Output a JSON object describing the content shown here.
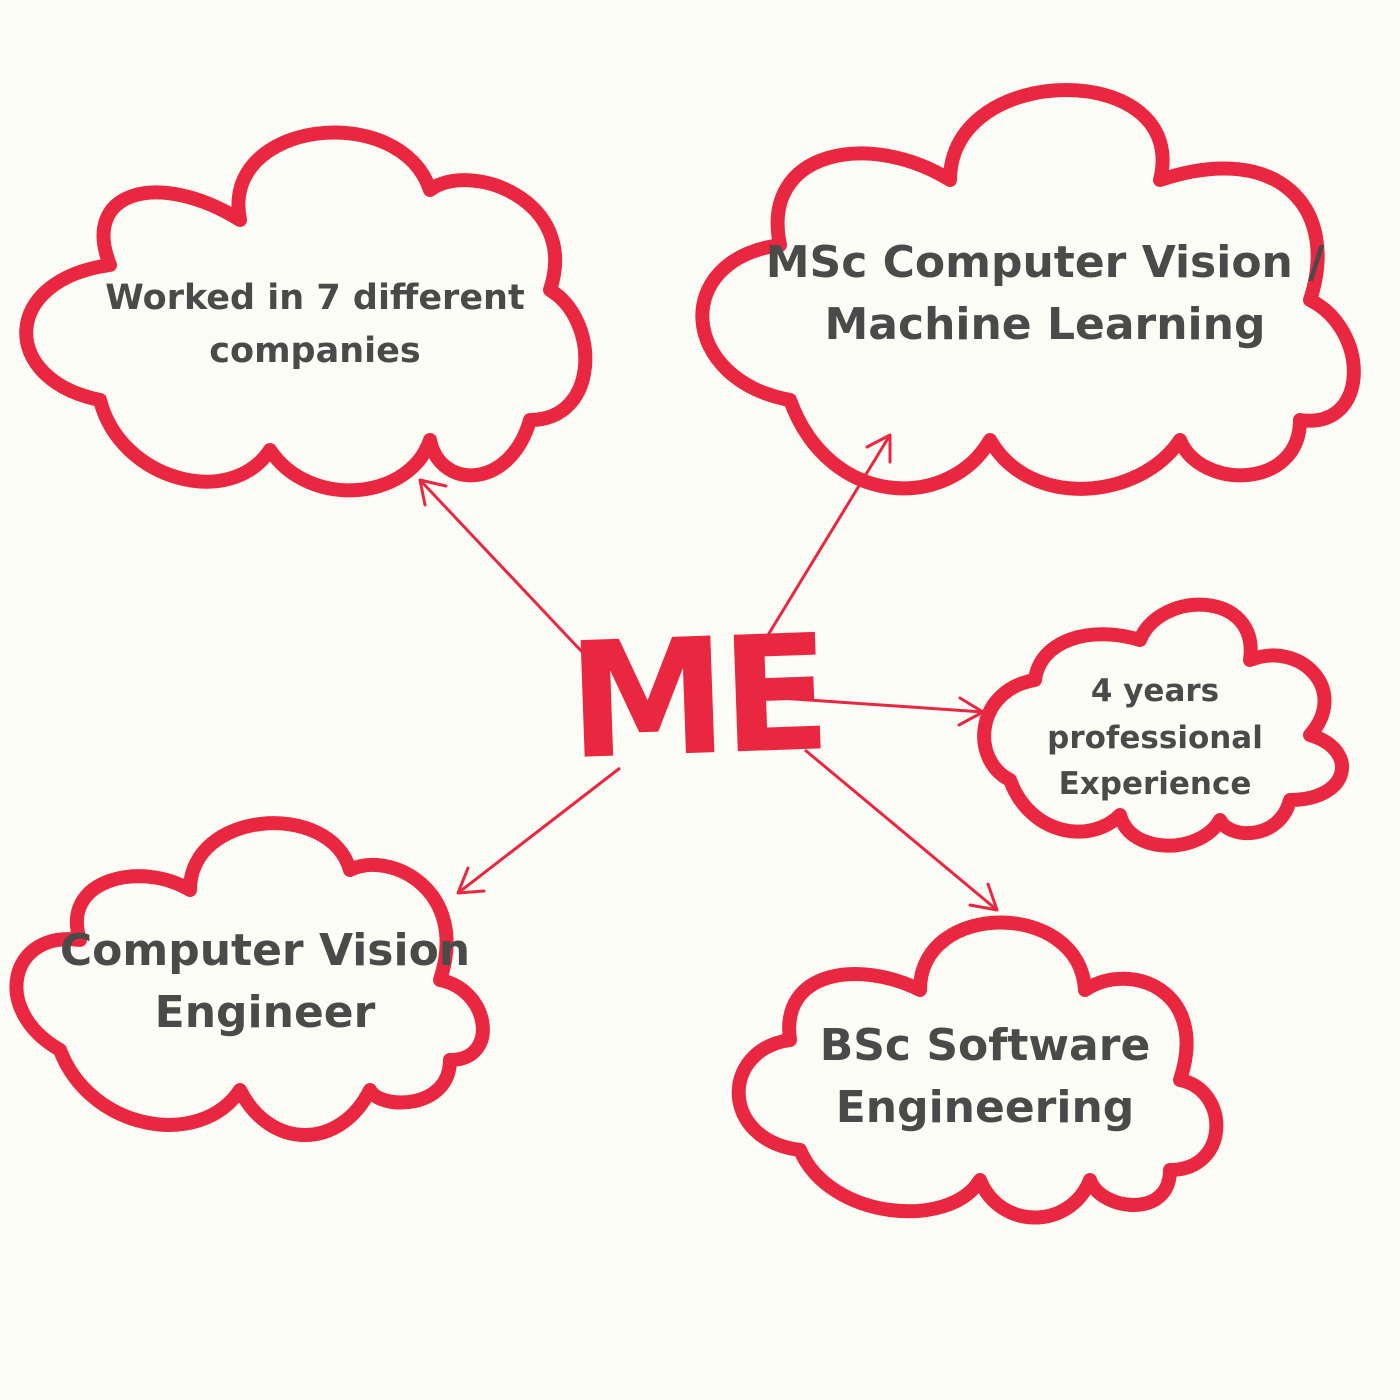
{
  "colors": {
    "accent": "#ea2740",
    "text": "#4a4a4a",
    "background": "#fcfcf7"
  },
  "center": {
    "label": "ME"
  },
  "nodes": {
    "companies": {
      "line1": "Worked in 7 different",
      "line2": "companies"
    },
    "msc": {
      "line1": "MSc Computer Vision /",
      "line2": "Machine Learning"
    },
    "years": {
      "line1": "4 years",
      "line2": "professional",
      "line3": "Experience"
    },
    "cv_engineer": {
      "line1": "Computer Vision",
      "line2": "Engineer"
    },
    "bsc": {
      "line1": "BSc Software",
      "line2": "Engineering"
    }
  }
}
